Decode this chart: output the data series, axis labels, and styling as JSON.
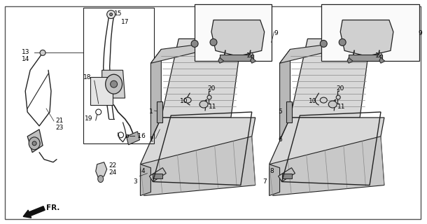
{
  "bg_color": "#ffffff",
  "line_color": "#222222",
  "fig_width": 6.1,
  "fig_height": 3.2,
  "dpi": 100,
  "outer_border": [
    0.01,
    0.02,
    0.988,
    0.975
  ]
}
